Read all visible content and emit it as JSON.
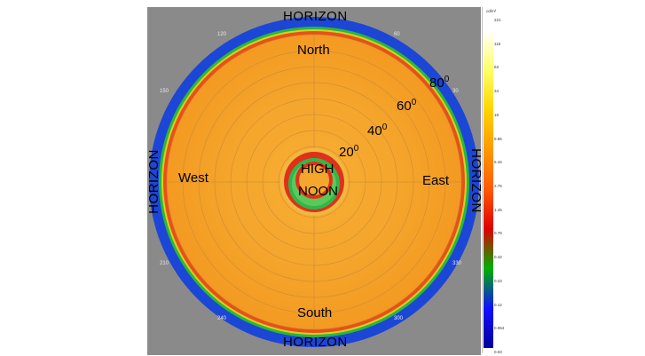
{
  "labels": {
    "horizon_top": "HORIZON",
    "horizon_bottom": "HORIZON",
    "horizon_left": "HORIZON",
    "horizon_right": "HORIZON",
    "north": "North",
    "south": "South",
    "east": "East",
    "west": "West",
    "center_line1": "HIGH",
    "center_line2": "NOON"
  },
  "elevation_labels": [
    {
      "base": "20",
      "sup": "0"
    },
    {
      "base": "40",
      "sup": "0"
    },
    {
      "base": "60",
      "sup": "0"
    },
    {
      "base": "80",
      "sup": "0"
    }
  ],
  "azimuth_labels": [
    "120",
    "60",
    "150",
    "30",
    "210",
    "330",
    "240",
    "300"
  ],
  "legend": {
    "unit": "cd/m²",
    "values": [
      "221",
      "118",
      "63",
      "34",
      "18",
      "9.86",
      "5.16",
      "2.76",
      "1.45",
      "0.78",
      "0.42",
      "0.23",
      "0.12",
      "0.064",
      "0.03"
    ],
    "colors": [
      "#ffffff",
      "#ffff66",
      "#ffd400",
      "#ff9900",
      "#ff5a00",
      "#e00000",
      "#00b000",
      "#1010ff",
      "#0000a0"
    ]
  },
  "plot_colors": {
    "field": "#f6a52a",
    "blue_ring": "#1c46d6",
    "green_ring": "#20b33a",
    "red_ring": "#e22a12",
    "background": "#8a8a8a"
  }
}
